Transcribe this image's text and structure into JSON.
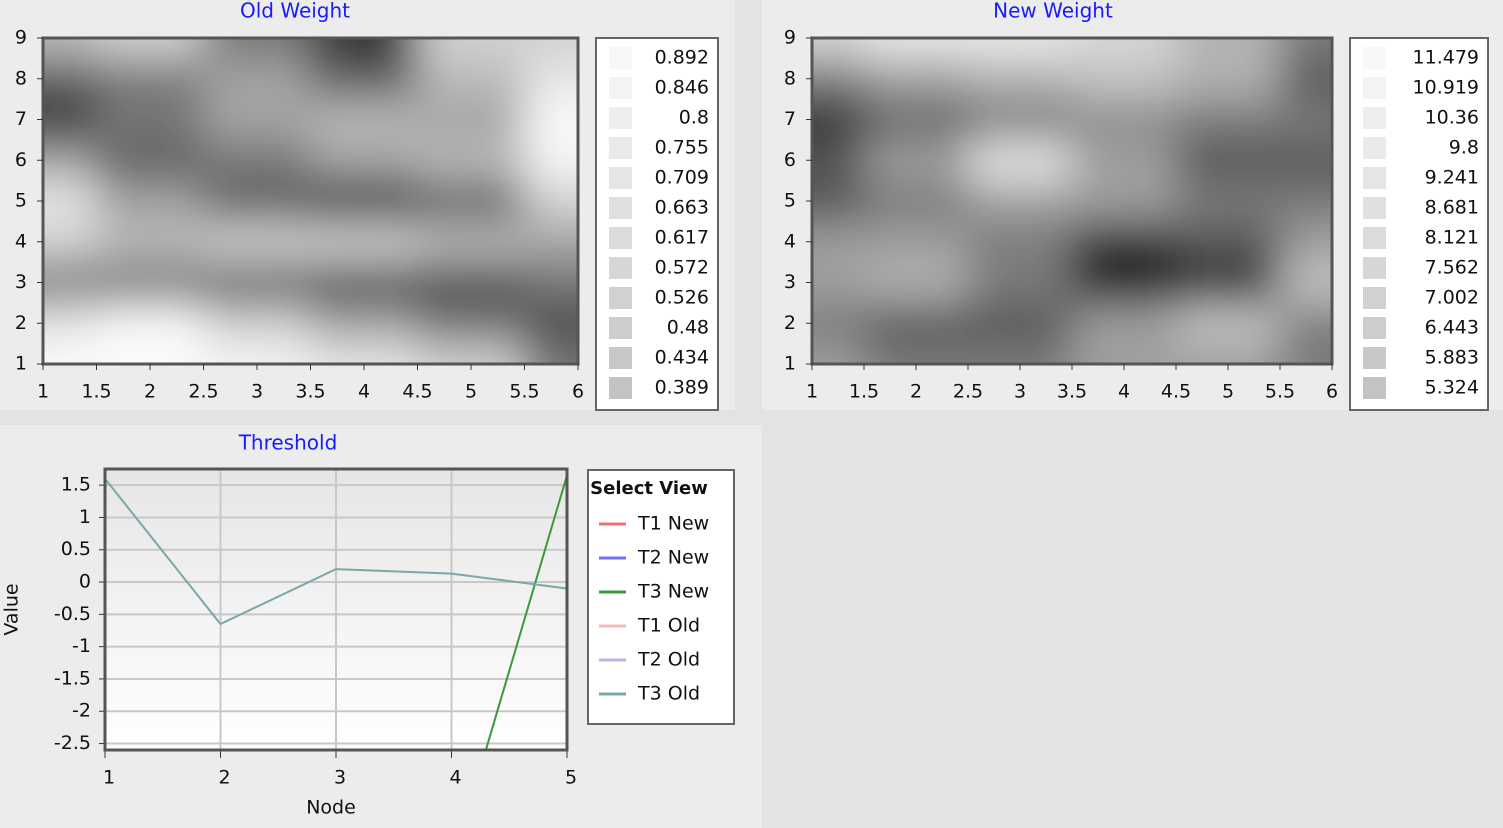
{
  "chart_data": [
    {
      "type": "heatmap",
      "title": "Old Weight",
      "x": [
        1,
        2,
        3,
        4,
        5,
        6
      ],
      "y": [
        1,
        2,
        3,
        4,
        5,
        6,
        7,
        8,
        9
      ],
      "z": [
        [
          0.9,
          0.9,
          0.88,
          0.85,
          0.8,
          0.6
        ],
        [
          0.85,
          0.9,
          0.8,
          0.7,
          0.6,
          0.5
        ],
        [
          0.6,
          0.6,
          0.55,
          0.5,
          0.5,
          0.6
        ],
        [
          0.8,
          0.75,
          0.8,
          0.8,
          0.75,
          0.7
        ],
        [
          0.85,
          0.7,
          0.55,
          0.45,
          0.55,
          0.8
        ],
        [
          0.7,
          0.55,
          0.6,
          0.7,
          0.75,
          0.88
        ],
        [
          0.45,
          0.6,
          0.7,
          0.75,
          0.7,
          0.9
        ],
        [
          0.55,
          0.6,
          0.7,
          0.55,
          0.75,
          0.85
        ],
        [
          0.75,
          0.8,
          0.6,
          0.45,
          0.8,
          0.8
        ]
      ],
      "xlim": [
        1,
        6
      ],
      "ylim": [
        1,
        9
      ],
      "xticks": [
        1,
        1.5,
        2,
        2.5,
        3,
        3.5,
        4,
        4.5,
        5,
        5.5,
        6
      ],
      "yticks": [
        1,
        2,
        3,
        4,
        5,
        6,
        7,
        8,
        9
      ],
      "legend_values": [
        0.892,
        0.846,
        0.8,
        0.755,
        0.709,
        0.663,
        0.617,
        0.572,
        0.526,
        0.48,
        0.434,
        0.389
      ]
    },
    {
      "type": "heatmap",
      "title": "New Weight",
      "x": [
        1,
        2,
        3,
        4,
        5,
        6
      ],
      "y": [
        1,
        2,
        3,
        4,
        5,
        6,
        7,
        8,
        9
      ],
      "z": [
        [
          9,
          8,
          8,
          9,
          9,
          8
        ],
        [
          8,
          7,
          7,
          9,
          10,
          8
        ],
        [
          9,
          9.5,
          8,
          5.5,
          6,
          10
        ],
        [
          9,
          9,
          8,
          6,
          7,
          9
        ],
        [
          7,
          8,
          9,
          9,
          8,
          8
        ],
        [
          7,
          9,
          11,
          9,
          7,
          7
        ],
        [
          6,
          7.5,
          8,
          8.5,
          8,
          8
        ],
        [
          8,
          9,
          9.5,
          10,
          9.5,
          7
        ],
        [
          10.5,
          11,
          11,
          10.5,
          9.5,
          8
        ]
      ],
      "xlim": [
        1,
        6
      ],
      "ylim": [
        1,
        9
      ],
      "xticks": [
        1,
        1.5,
        2,
        2.5,
        3,
        3.5,
        4,
        4.5,
        5,
        5.5,
        6
      ],
      "yticks": [
        1,
        2,
        3,
        4,
        5,
        6,
        7,
        8,
        9
      ],
      "legend_values": [
        11.479,
        10.919,
        10.36,
        9.8,
        9.241,
        8.681,
        8.121,
        7.562,
        7.002,
        6.443,
        5.883,
        5.324
      ]
    },
    {
      "type": "line",
      "title": "Threshold",
      "xlabel": "Node",
      "ylabel": "Value",
      "x": [
        1,
        2,
        3,
        4,
        5
      ],
      "series": [
        {
          "name": "T1 New",
          "color": "#f07070",
          "values": [
            null,
            null,
            null,
            null,
            null
          ]
        },
        {
          "name": "T2 New",
          "color": "#7070f0",
          "values": [
            null,
            null,
            null,
            null,
            null
          ]
        },
        {
          "name": "T3 New",
          "color": "#3a9a3a",
          "values": [
            null,
            null,
            null,
            -4.4,
            1.65
          ]
        },
        {
          "name": "T1 Old",
          "color": "#f4b8b8",
          "values": [
            null,
            null,
            null,
            null,
            null
          ]
        },
        {
          "name": "T2 Old",
          "color": "#b8b8e0",
          "values": [
            null,
            null,
            null,
            null,
            null
          ]
        },
        {
          "name": "T3 Old",
          "color": "#7aa8a8",
          "values": [
            1.6,
            -0.65,
            0.2,
            0.13,
            -0.1
          ]
        }
      ],
      "xlim": [
        1,
        5
      ],
      "ylim": [
        -2.6,
        1.75
      ],
      "xticks": [
        1,
        2,
        3,
        4,
        5
      ],
      "yticks": [
        1.5,
        1,
        0.5,
        0,
        -0.5,
        -1,
        -1.5,
        -2,
        -2.5
      ],
      "grid": true,
      "legend_title": "Select View"
    }
  ]
}
